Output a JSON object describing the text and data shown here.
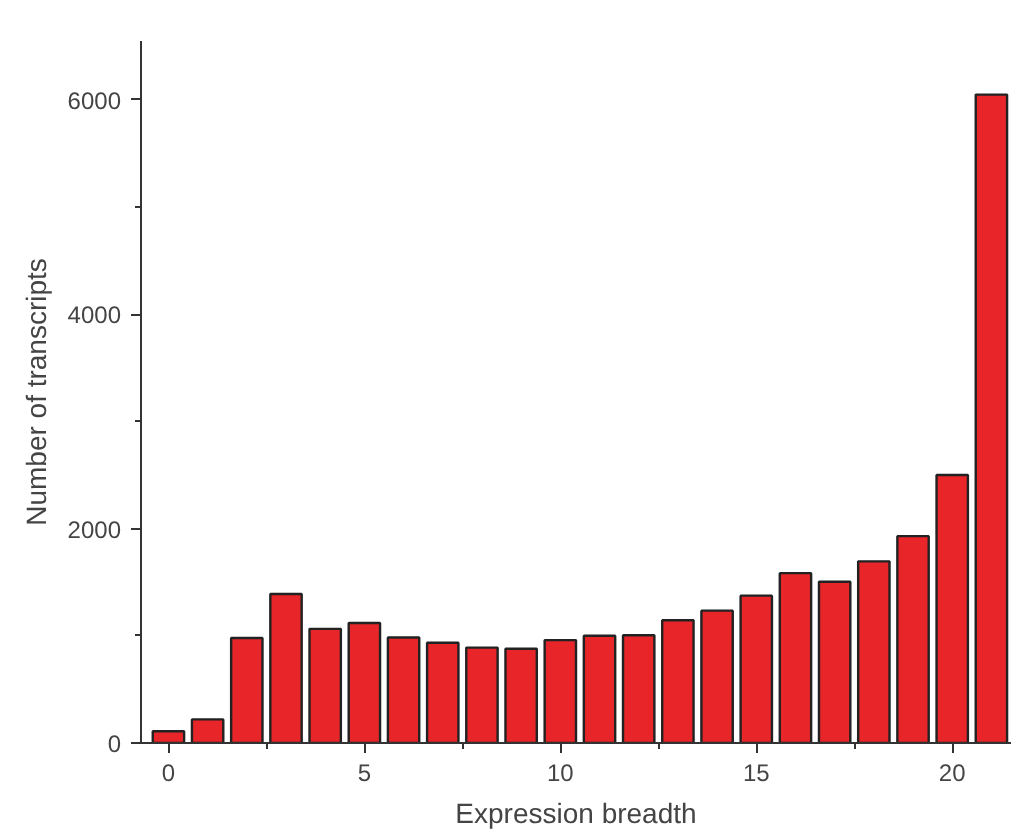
{
  "chart_data": {
    "type": "bar",
    "xlabel": "Expression breadth",
    "ylabel": "Number of transcripts",
    "x": [
      0,
      1,
      2,
      3,
      4,
      5,
      6,
      7,
      8,
      9,
      10,
      11,
      12,
      13,
      14,
      15,
      16,
      17,
      18,
      19,
      20,
      21
    ],
    "values": [
      110,
      220,
      980,
      1390,
      1065,
      1120,
      985,
      935,
      890,
      880,
      960,
      1000,
      1005,
      1145,
      1235,
      1375,
      1585,
      1505,
      1695,
      1930,
      2500,
      6050
    ],
    "color": "#e8262a",
    "xlim": [
      -0.7,
      21.5
    ],
    "ylim": [
      0,
      6550
    ],
    "xticks": [
      0,
      5,
      10,
      15,
      20
    ],
    "yticks": [
      0,
      2000,
      4000,
      6000
    ],
    "grid": false
  }
}
